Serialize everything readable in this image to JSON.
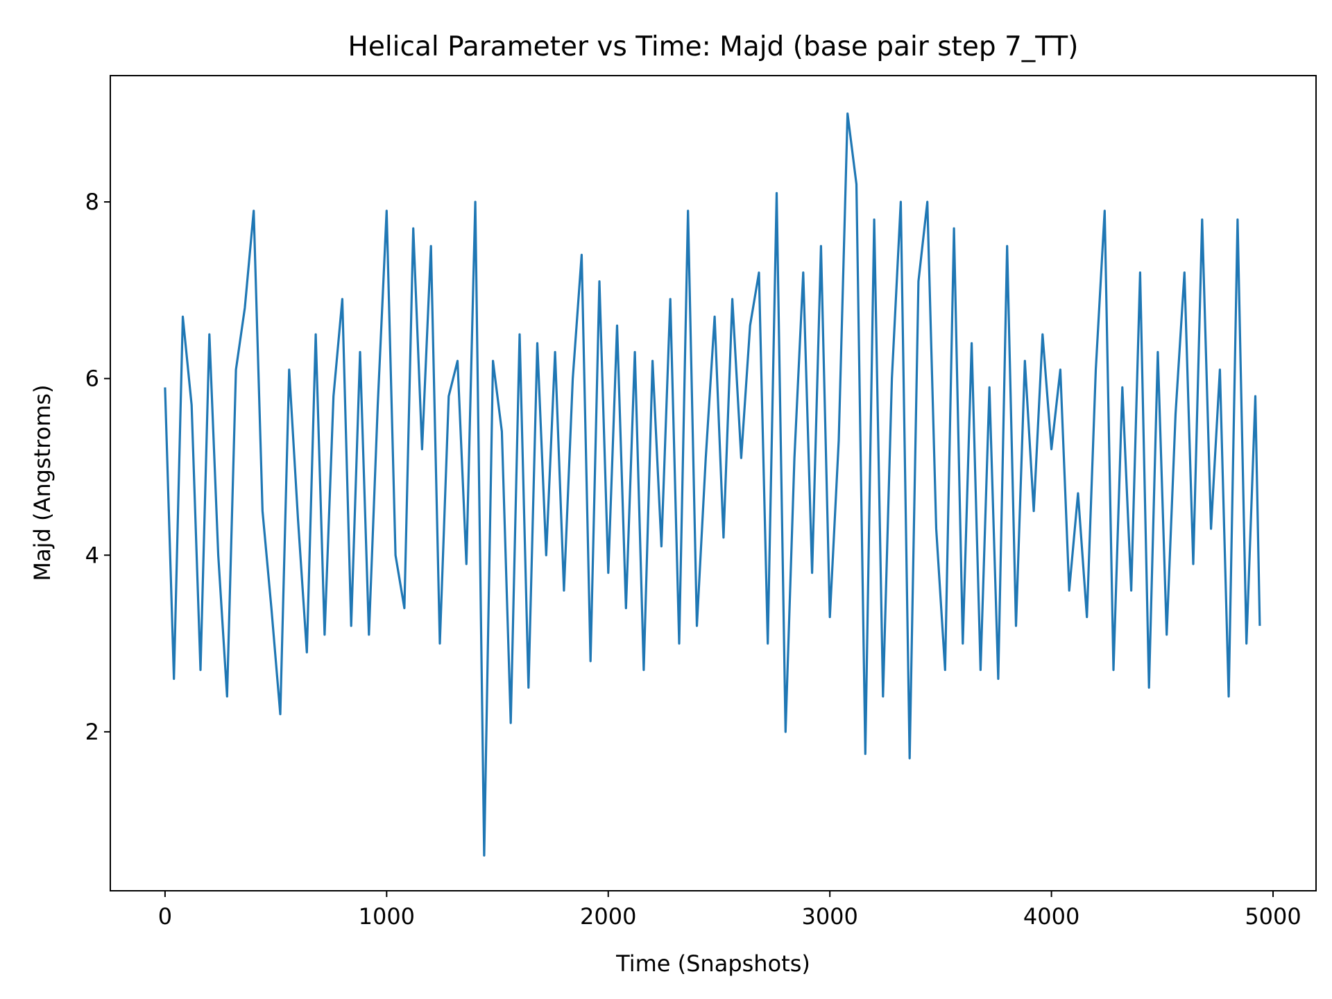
{
  "chart_data": {
    "type": "line",
    "title": "Helical Parameter vs Time: Majd (base pair step 7_TT)",
    "x_label": "Time (Snapshots)",
    "y_label": "Majd (Angstroms)",
    "x": [
      0,
      40,
      80,
      120,
      160,
      200,
      240,
      280,
      320,
      360,
      400,
      440,
      480,
      520,
      560,
      600,
      640,
      680,
      720,
      760,
      800,
      840,
      880,
      920,
      960,
      1000,
      1040,
      1080,
      1120,
      1160,
      1200,
      1240,
      1280,
      1320,
      1360,
      1400,
      1440,
      1480,
      1520,
      1560,
      1600,
      1640,
      1680,
      1720,
      1760,
      1800,
      1840,
      1880,
      1920,
      1960,
      2000,
      2040,
      2080,
      2120,
      2160,
      2200,
      2240,
      2280,
      2320,
      2360,
      2400,
      2440,
      2480,
      2520,
      2560,
      2600,
      2640,
      2680,
      2720,
      2760,
      2800,
      2840,
      2880,
      2920,
      2960,
      3000,
      3040,
      3080,
      3120,
      3160,
      3200,
      3240,
      3280,
      3320,
      3360,
      3400,
      3440,
      3480,
      3520,
      3560,
      3600,
      3640,
      3680,
      3720,
      3760,
      3800,
      3840,
      3880,
      3920,
      3960,
      4000,
      4040,
      4080,
      4120,
      4160,
      4200,
      4240,
      4280,
      4320,
      4360,
      4400,
      4440,
      4480,
      4520,
      4560,
      4600,
      4640,
      4680,
      4720,
      4760,
      4800,
      4840,
      4880,
      4920,
      4940
    ],
    "series": [
      {
        "name": "Majd",
        "color": "#1f77b4",
        "values": [
          5.9,
          2.6,
          6.7,
          5.7,
          2.7,
          6.5,
          4.0,
          2.4,
          6.1,
          6.8,
          7.9,
          4.5,
          3.4,
          2.2,
          6.1,
          4.4,
          2.9,
          6.5,
          3.1,
          5.8,
          6.9,
          3.2,
          6.3,
          3.1,
          5.7,
          7.9,
          4.0,
          3.4,
          7.7,
          5.2,
          7.5,
          3.0,
          5.8,
          6.2,
          3.9,
          8.0,
          0.6,
          6.2,
          5.4,
          2.1,
          6.5,
          2.5,
          6.4,
          4.0,
          6.3,
          3.6,
          6.0,
          7.4,
          2.8,
          7.1,
          3.8,
          6.6,
          3.4,
          6.3,
          2.7,
          6.2,
          4.1,
          6.9,
          3.0,
          7.9,
          3.2,
          5.1,
          6.7,
          4.2,
          6.9,
          5.1,
          6.6,
          7.2,
          3.0,
          8.1,
          2.0,
          5.1,
          7.2,
          3.8,
          7.5,
          3.3,
          5.3,
          9.0,
          8.2,
          1.75,
          7.8,
          2.4,
          6.0,
          8.0,
          1.7,
          7.1,
          8.0,
          4.3,
          2.7,
          7.7,
          3.0,
          6.4,
          2.7,
          5.9,
          2.6,
          7.5,
          3.2,
          6.2,
          4.5,
          6.5,
          5.2,
          6.1,
          3.6,
          4.7,
          3.3,
          6.1,
          7.9,
          2.7,
          5.9,
          3.6,
          7.2,
          2.5,
          6.3,
          3.1,
          5.6,
          7.2,
          3.9,
          7.8,
          4.3,
          6.1,
          2.4,
          7.8,
          3.0,
          5.8,
          3.2
        ]
      }
    ],
    "xlim": [
      -247,
      5194
    ],
    "ylim": [
      0.2,
      9.43
    ],
    "xticks": [
      0,
      1000,
      2000,
      3000,
      4000,
      5000
    ],
    "yticks": [
      2,
      4,
      6,
      8
    ]
  }
}
